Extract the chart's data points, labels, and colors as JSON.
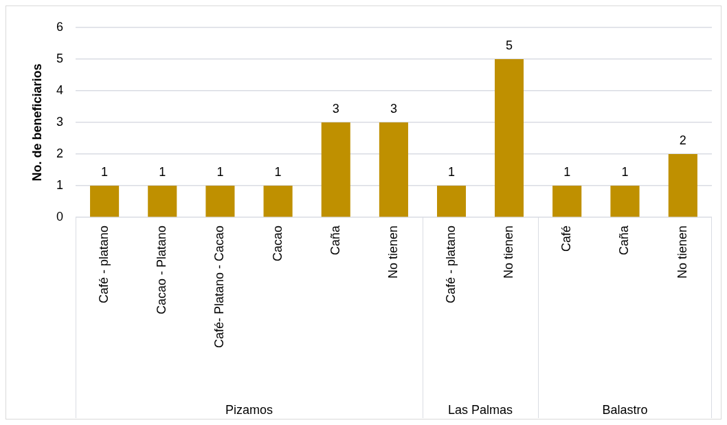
{
  "chart_data": [
    {
      "type": "bar",
      "ylabel": "No. de beneficiarios",
      "xlabel": "Pizamos",
      "categories": [
        "Café - platano",
        "Cacao - Platano",
        "Café- Platano - Cacao",
        "Cacao",
        "Caña",
        "No tienen"
      ],
      "values": [
        1,
        1,
        1,
        1,
        3,
        3
      ],
      "color": "#bf9000",
      "ylim": [
        0,
        6
      ],
      "yticks": [
        0,
        1,
        2,
        3,
        4,
        5,
        6
      ],
      "grid": "y",
      "data_labels": true
    },
    {
      "type": "bar",
      "xlabel": "Las Palmas",
      "categories": [
        "Café - platano",
        "No tienen"
      ],
      "values": [
        1,
        5
      ],
      "color": "#bf9000",
      "ylim": [
        0,
        6
      ],
      "yticks": [
        0,
        1,
        2,
        3,
        4,
        5,
        6
      ],
      "grid": "y",
      "data_labels": true,
      "tick_labels": "x"
    },
    {
      "type": "bar",
      "xlabel": "Balastro",
      "categories": [
        "Café",
        "Caña",
        "No tienen"
      ],
      "values": [
        1,
        1,
        2
      ],
      "color": "#bf9000",
      "ylim": [
        0,
        6
      ],
      "yticks": [
        0,
        1,
        2,
        3,
        4,
        5,
        6
      ],
      "grid": "y",
      "data_labels": true,
      "tick_labels": "x"
    }
  ]
}
